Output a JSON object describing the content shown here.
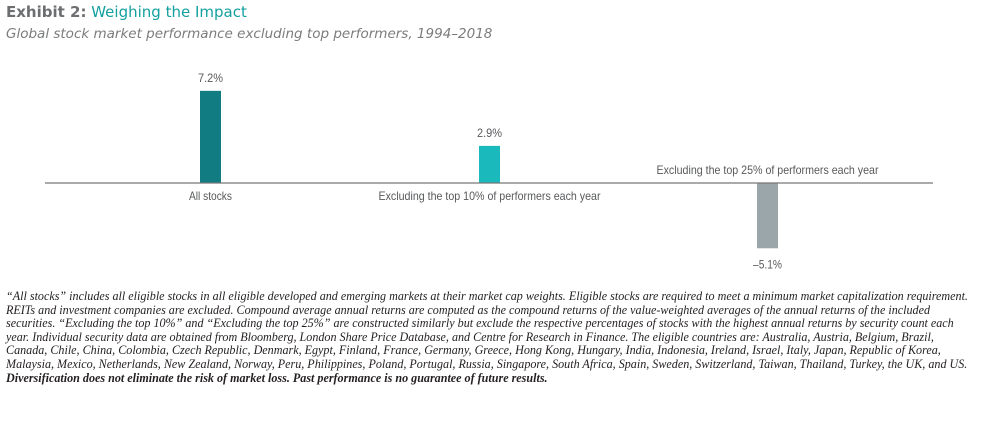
{
  "header": {
    "exhibit_prefix": "Exhibit 2:",
    "title": "Weighing the Impact",
    "subtitle": "Global stock market performance excluding top performers, 1994–2018"
  },
  "chart_data": {
    "type": "bar",
    "title": "Weighing the Impact",
    "subtitle": "Global stock market performance excluding top performers, 1994–2018",
    "xlabel": "",
    "ylabel": "",
    "grid": false,
    "legend": "none",
    "categories": [
      "All stocks",
      "Excluding the top 10% of performers each year",
      "Excluding the top 25% of performers each year"
    ],
    "values": [
      7.2,
      2.9,
      -5.1
    ],
    "value_labels": [
      "7.2%",
      "2.9%",
      "–5.1%"
    ],
    "units": "% compound average annual return",
    "ylim": [
      -5.1,
      7.2
    ],
    "colors": [
      "#127c83",
      "#1ab9bc",
      "#9ba6ab"
    ],
    "axis_color": "#777777",
    "label_color": "#58595b"
  },
  "footnote": {
    "body": "“All stocks” includes all eligible stocks in all eligible developed and emerging markets at their market cap weights. Eligible stocks are required to meet a minimum market capitalization requirement. REITs and investment companies are excluded. Compound average annual returns are computed as the compound returns of the value-weighted averages of the annual returns of the included securities. “Excluding the top 10%” and “Excluding the top 25%” are constructed similarly but exclude the respective percentages of stocks with the highest annual returns by security count each year. Individual security data are obtained from Bloomberg, London Share Price Database, and Centre for Research in Finance. The eligible countries are: Australia, Austria, Belgium, Brazil, Canada, Chile, China, Colombia, Czech Republic, Denmark, Egypt, Finland, France, Germany, Greece, Hong Kong, Hungary, India, Indonesia, Ireland, Israel, Italy, Japan, Republic of Korea, Malaysia, Mexico, Netherlands, New Zealand, Norway, Peru, Philippines, Poland, Portugal, Russia, Singapore, South Africa, Spain, Sweden, Switzerland, Taiwan, Thailand, Turkey, the UK, and US. ",
    "bold": "Diversification does not eliminate the risk of market loss. Past performance is no guarantee of future results."
  }
}
